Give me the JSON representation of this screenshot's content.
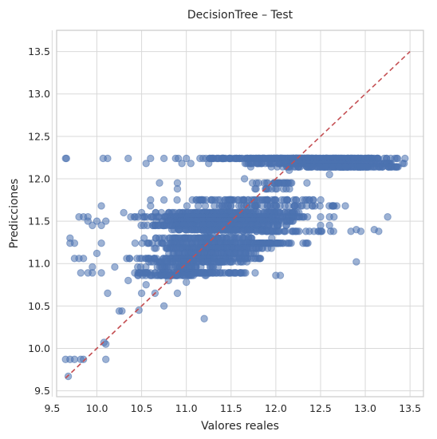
{
  "chart_data": {
    "type": "scatter",
    "title": "DecisionTree – Test",
    "xlabel": "Valores reales",
    "ylabel": "Predicciones",
    "xlim": [
      9.55,
      13.65
    ],
    "ylim": [
      9.43,
      13.75
    ],
    "xticks": [
      9.5,
      10.0,
      10.5,
      11.0,
      11.5,
      12.0,
      12.5,
      13.0,
      13.5
    ],
    "yticks": [
      9.5,
      10.0,
      10.5,
      11.0,
      11.5,
      12.0,
      12.5,
      13.0,
      13.5
    ],
    "xtick_labels": [
      "9.5",
      "10.0",
      "10.5",
      "11.0",
      "11.5",
      "12.0",
      "12.5",
      "13.0",
      "13.5"
    ],
    "ytick_labels": [
      "9.5",
      "10.0",
      "10.5",
      "11.0",
      "11.5",
      "12.0",
      "12.5",
      "13.0",
      "13.5"
    ],
    "grid": true,
    "point_color": "#4c72b0",
    "point_opacity": 0.55,
    "reference_line": {
      "x": [
        9.65,
        13.5
      ],
      "y": [
        9.65,
        13.5
      ],
      "style": "dashed",
      "color": "#c44e52"
    },
    "prediction_levels": [
      {
        "y": 12.24,
        "x_range": [
          11.0,
          13.5
        ],
        "sparse": [
          9.65,
          9.66,
          10.07,
          10.12,
          10.35,
          10.6,
          10.75,
          10.88,
          10.91,
          11.0
        ],
        "count": 340
      },
      {
        "y": 12.18,
        "x_range": [
          11.6,
          13.5
        ],
        "sparse": [
          10.55,
          10.95,
          11.05,
          11.25
        ],
        "count": 260
      },
      {
        "y": 12.14,
        "x_range": [
          12.0,
          13.5
        ],
        "sparse": [
          11.95,
          11.72
        ],
        "count": 160
      },
      {
        "y": 11.95,
        "x_range": [
          11.7,
          12.4
        ],
        "sparse": [
          10.7,
          10.9
        ],
        "count": 25
      },
      {
        "y": 11.88,
        "x_range": [
          11.7,
          12.2
        ],
        "sparse": [
          10.9
        ],
        "count": 12
      },
      {
        "y": 11.75,
        "x_range": [
          10.8,
          12.6
        ],
        "sparse": [
          10.6,
          10.75
        ],
        "count": 80
      },
      {
        "y": 11.68,
        "x_range": [
          10.9,
          12.9
        ],
        "sparse": [
          10.05,
          10.6
        ],
        "count": 60
      },
      {
        "y": 11.6,
        "x_range": [
          10.6,
          12.4
        ],
        "sparse": [
          10.3,
          10.5
        ],
        "count": 160
      },
      {
        "y": 11.55,
        "x_range": [
          10.3,
          12.4
        ],
        "sparse": [
          9.8,
          9.85,
          9.9,
          12.5,
          12.6,
          12.65,
          13.25
        ],
        "count": 340
      },
      {
        "y": 11.5,
        "x_range": [
          10.6,
          12.3
        ],
        "sparse": [
          9.9,
          10.0,
          10.1
        ],
        "count": 260
      },
      {
        "y": 11.45,
        "x_range": [
          10.4,
          12.2
        ],
        "sparse": [
          9.95,
          10.05,
          12.5,
          12.6
        ],
        "count": 220
      },
      {
        "y": 11.4,
        "x_range": [
          10.8,
          12.0
        ],
        "sparse": [
          12.9,
          13.1
        ],
        "count": 120
      },
      {
        "y": 11.38,
        "x_range": [
          11.0,
          12.9
        ],
        "sparse": [
          12.95,
          13.15
        ],
        "count": 60
      },
      {
        "y": 11.3,
        "x_range": [
          10.5,
          12.0
        ],
        "sparse": [
          9.7
        ],
        "count": 90
      },
      {
        "y": 11.24,
        "x_range": [
          10.4,
          12.5
        ],
        "sparse": [
          9.7,
          9.75,
          10.05
        ],
        "count": 180
      },
      {
        "y": 11.18,
        "x_range": [
          10.6,
          12.0
        ],
        "sparse": [],
        "count": 150
      },
      {
        "y": 11.12,
        "x_range": [
          10.7,
          11.9
        ],
        "sparse": [
          10.0
        ],
        "count": 90
      },
      {
        "y": 11.06,
        "x_range": [
          10.3,
          12.0
        ],
        "sparse": [
          9.75,
          9.8,
          9.85
        ],
        "count": 150
      },
      {
        "y": 11.02,
        "x_range": [
          10.5,
          11.8
        ],
        "sparse": [
          12.9
        ],
        "count": 90
      },
      {
        "y": 10.96,
        "x_range": [
          10.4,
          11.4
        ],
        "sparse": [
          9.95,
          10.2
        ],
        "count": 50
      },
      {
        "y": 10.89,
        "x_range": [
          10.3,
          11.8
        ],
        "sparse": [
          9.82,
          9.9,
          9.95,
          10.05
        ],
        "count": 120
      },
      {
        "y": 10.86,
        "x_range": [
          10.4,
          11.3
        ],
        "sparse": [
          12.0,
          12.05
        ],
        "count": 50
      }
    ],
    "isolated_points": [
      [
        9.65,
        9.87
      ],
      [
        9.7,
        9.87
      ],
      [
        9.75,
        9.87
      ],
      [
        9.82,
        9.87
      ],
      [
        9.85,
        9.87
      ],
      [
        9.68,
        9.67
      ],
      [
        10.08,
        10.07
      ],
      [
        10.1,
        10.05
      ],
      [
        10.1,
        9.87
      ],
      [
        10.12,
        10.65
      ],
      [
        10.25,
        10.44
      ],
      [
        10.28,
        10.44
      ],
      [
        10.47,
        10.45
      ],
      [
        10.5,
        10.65
      ],
      [
        10.65,
        10.65
      ],
      [
        10.75,
        10.5
      ],
      [
        10.9,
        10.65
      ],
      [
        11.2,
        10.35
      ],
      [
        10.35,
        10.8
      ],
      [
        10.55,
        10.75
      ],
      [
        10.8,
        10.8
      ],
      [
        11.0,
        10.78
      ],
      [
        11.65,
        12.0
      ],
      [
        12.15,
        12.1
      ],
      [
        12.6,
        12.05
      ]
    ]
  }
}
